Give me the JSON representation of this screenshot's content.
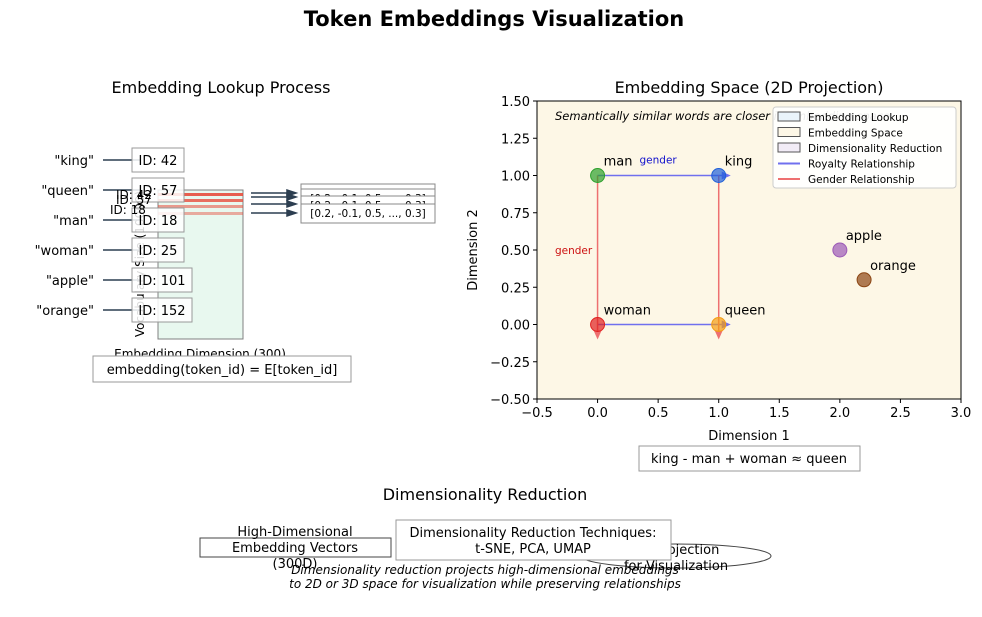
{
  "title": "Token Embeddings Visualization",
  "lookup": {
    "title": "Embedding Lookup Process",
    "tokens": [
      {
        "word": "\"king\"",
        "id": "ID: 42"
      },
      {
        "word": "\"queen\"",
        "id": "ID: 57"
      },
      {
        "word": "\"man\"",
        "id": "ID: 18"
      },
      {
        "word": "\"woman\"",
        "id": "ID: 25"
      },
      {
        "word": "\"apple\"",
        "id": "ID: 101"
      },
      {
        "word": "\"orange\"",
        "id": "ID: 152"
      }
    ],
    "overlap_ids": [
      "ID: 42",
      "ID: 57",
      "ID: 18"
    ],
    "matrix_ylabel": "Vocabulary Size (10000)",
    "matrix_xlabel": "Embedding Dimension (300)",
    "vector_label": "[0.2, -0.1, 0.5, ..., 0.3]",
    "formula": "embedding(token_id) = E[token_id]",
    "colors": {
      "matrix_fill": "#e8f8ef",
      "row_highlight": "#e74c3c",
      "arrow": "#2c3e50"
    }
  },
  "space": {
    "title": "Embedding Space (2D Projection)",
    "note": "Semantically similar words are closer in embedding space",
    "xlabel": "Dimension 1",
    "ylabel": "Dimension 2",
    "xlim": [
      -0.5,
      3.0
    ],
    "ylim": [
      -0.5,
      1.5
    ],
    "xticks": [
      "−0.5",
      "0.0",
      "0.5",
      "1.0",
      "1.5",
      "2.0",
      "2.5",
      "3.0"
    ],
    "yticks": [
      "−0.50",
      "−0.25",
      "0.00",
      "0.25",
      "0.50",
      "0.75",
      "1.00",
      "1.25",
      "1.50"
    ],
    "bg_color": "#fdf7e6",
    "gender_label": "gender",
    "analogy": "king - man + woman ≈ queen",
    "legend": [
      {
        "label": "Embedding Lookup",
        "kind": "patch",
        "color": "#eaf4fb"
      },
      {
        "label": "Embedding Space",
        "kind": "patch",
        "color": "#fdf7e6"
      },
      {
        "label": "Dimensionality Reduction",
        "kind": "patch",
        "color": "#f2ecf6"
      },
      {
        "label": "Royalty Relationship",
        "kind": "line",
        "color": "#7070ee"
      },
      {
        "label": "Gender Relationship",
        "kind": "line",
        "color": "#ee7070"
      }
    ]
  },
  "chart_data": {
    "type": "scatter",
    "title": "Embedding Space (2D Projection)",
    "xlabel": "Dimension 1",
    "ylabel": "Dimension 2",
    "xlim": [
      -0.5,
      3.0
    ],
    "ylim": [
      -0.5,
      1.5
    ],
    "points": [
      {
        "label": "man",
        "x": 0.0,
        "y": 1.0,
        "color": "#2ca02c"
      },
      {
        "label": "king",
        "x": 1.0,
        "y": 1.0,
        "color": "#1f5fd8"
      },
      {
        "label": "woman",
        "x": 0.0,
        "y": 0.0,
        "color": "#e02020"
      },
      {
        "label": "queen",
        "x": 1.0,
        "y": 0.0,
        "color": "#f39c12"
      },
      {
        "label": "apple",
        "x": 2.0,
        "y": 0.5,
        "color": "#9b59b6"
      },
      {
        "label": "orange",
        "x": 2.2,
        "y": 0.3,
        "color": "#8b4513"
      }
    ],
    "relations": [
      {
        "type": "royalty",
        "from": [
          0,
          1
        ],
        "to": [
          1,
          1
        ],
        "label": "gender"
      },
      {
        "type": "royalty",
        "from": [
          0,
          0
        ],
        "to": [
          1,
          0
        ]
      },
      {
        "type": "gender",
        "from": [
          0,
          1
        ],
        "to": [
          0,
          0
        ],
        "label": "gender"
      },
      {
        "type": "gender",
        "from": [
          1,
          1
        ],
        "to": [
          1,
          0
        ]
      }
    ]
  },
  "reduction": {
    "title": "Dimensionality Reduction",
    "high_dim": [
      "High-Dimensional",
      "Embedding Vectors",
      "(300D)"
    ],
    "techniques": [
      "Dimensionality Reduction Techniques:",
      "t-SNE, PCA, UMAP"
    ],
    "projection": [
      "2D Projection",
      "for Visualization"
    ],
    "caption": [
      "Dimensionality reduction projects high-dimensional embeddings",
      "to 2D or 3D space for visualization while preserving relationships"
    ]
  }
}
